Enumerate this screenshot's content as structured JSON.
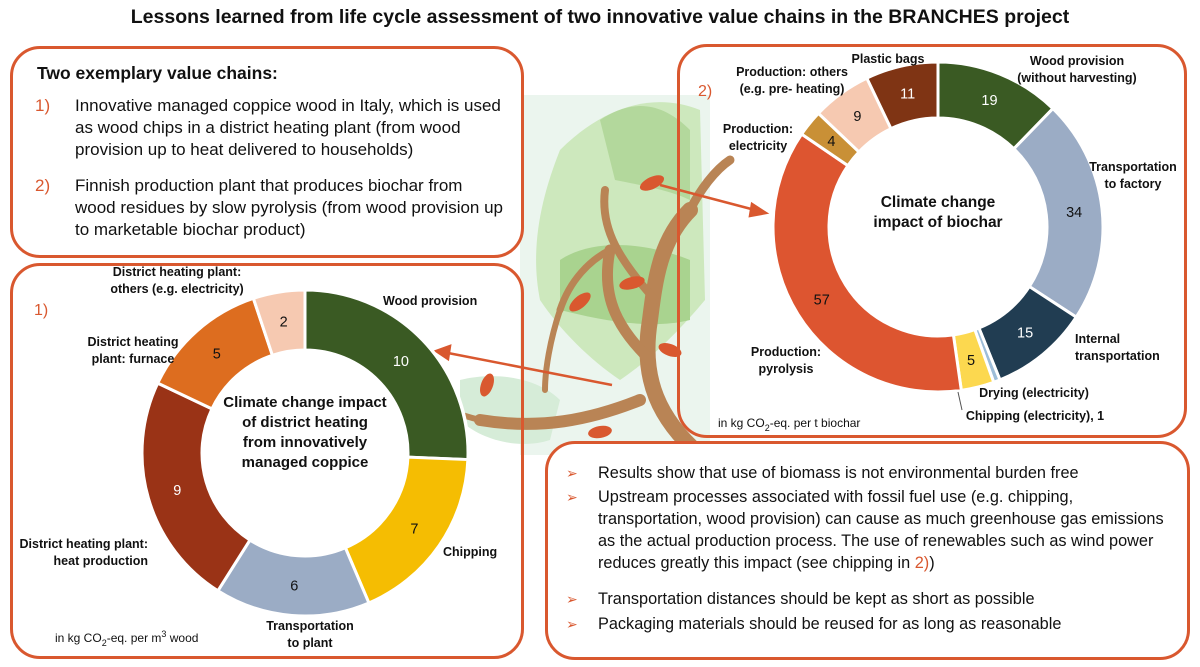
{
  "title": "Lessons learned from life cycle assessment of two innovative value chains in the BRANCHES project",
  "chains": {
    "heading": "Two exemplary value chains:",
    "items": [
      {
        "num": "1)",
        "text": "Innovative managed coppice wood in Italy, which is used as wood chips in a district heating plant (from wood provision up to heat delivered to households)"
      },
      {
        "num": "2)",
        "text": "Finnish production plant that produces biochar from wood residues by slow pyrolysis (from wood provision up to marketable biochar product)"
      }
    ]
  },
  "lessons": [
    "Results show that use of biomass is not environmental burden free",
    "Upstream processes associated with fossil fuel use (e.g. chipping, transportation, wood provision) can cause as much greenhouse gas emissions as the actual production process. The use of renewables such as wind power reduces greatly this impact (see chipping in ",
    "Transportation distances should be kept as short as possible",
    "Packaging materials should be reused for as long as reasonable"
  ],
  "lesson_ref": "2)",
  "lesson_ref_close": ")",
  "chart_data": [
    {
      "type": "pie",
      "number_label": "1)",
      "title": [
        "Climate change impact",
        "of district heating",
        "from innovatively",
        "managed coppice"
      ],
      "unit_prefix": "in kg CO",
      "unit_sub": "2",
      "unit_mid": "-eq. per m",
      "unit_sup": "3",
      "unit_suffix": " wood",
      "slices": [
        {
          "label": [
            "Wood provision"
          ],
          "value": 10,
          "color": "#3a5a23"
        },
        {
          "label": [
            "Chipping"
          ],
          "value": 7,
          "color": "#f5bd02"
        },
        {
          "label": [
            "Transportation",
            "to plant"
          ],
          "value": 6,
          "color": "#9bacc5"
        },
        {
          "label": [
            "District heating plant:",
            "heat production"
          ],
          "value": 9,
          "color": "#9a3316"
        },
        {
          "label": [
            "District heating",
            "plant: furnace"
          ],
          "value": 5,
          "color": "#dd6d1f"
        },
        {
          "label": [
            "District heating plant:",
            "others (e.g. electricity)"
          ],
          "value": 2,
          "color": "#f6c9b1"
        }
      ]
    },
    {
      "type": "pie",
      "number_label": "2)",
      "title": [
        "Climate change",
        "impact of biochar"
      ],
      "unit_prefix": "in kg CO",
      "unit_sub": "2",
      "unit_mid": "-eq. per t biochar",
      "unit_sup": "",
      "unit_suffix": "",
      "slices": [
        {
          "label": [
            "Wood provision",
            "(without harvesting)"
          ],
          "value": 19,
          "color": "#3a5a23"
        },
        {
          "label": [
            "Transportation",
            "to factory"
          ],
          "value": 34,
          "color": "#9bacc5"
        },
        {
          "label": [
            "Internal",
            "transportation"
          ],
          "value": 15,
          "color": "#213d52"
        },
        {
          "label": [
            "Chipping (electricity), 1"
          ],
          "value": 1,
          "color": "#9dbdd8"
        },
        {
          "label": [
            "Drying (electricity)"
          ],
          "value": 5,
          "color": "#fcd84f"
        },
        {
          "label": [
            "Production:",
            "pyrolysis"
          ],
          "value": 57,
          "color": "#dd5530"
        },
        {
          "label": [
            "Production:",
            "electricity"
          ],
          "value": 4,
          "color": "#c99036"
        },
        {
          "label": [
            "Production: others",
            "(e.g. pre- heating)"
          ],
          "value": 9,
          "color": "#f6c9b1"
        },
        {
          "label": [
            "Plastic bags"
          ],
          "value": 11,
          "color": "#7f3414"
        }
      ]
    }
  ]
}
